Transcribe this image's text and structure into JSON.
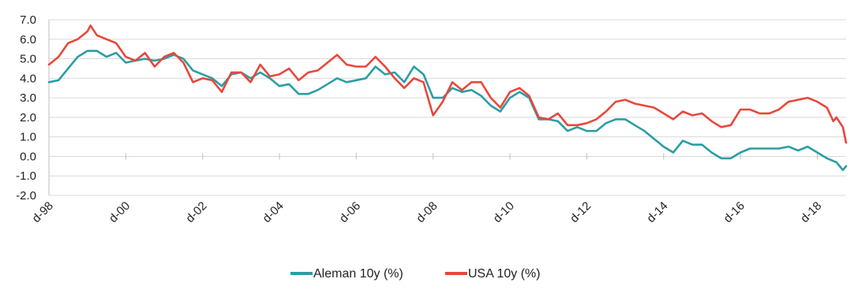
{
  "chart_data": {
    "type": "line",
    "title": "",
    "xlabel": "",
    "ylabel": "",
    "ylim": [
      -2.0,
      7.0
    ],
    "yticks": [
      "7.0",
      "6.0",
      "5.0",
      "4.0",
      "3.0",
      "2.0",
      "1.0",
      "0.0",
      "-1.0",
      "-2.0"
    ],
    "x_range": [
      "1998-12",
      "2019-09"
    ],
    "xtick_labels": [
      "d-98",
      "d-00",
      "d-02",
      "d-04",
      "d-06",
      "d-08",
      "d-10",
      "d-12",
      "d-14",
      "d-16",
      "d-18"
    ],
    "grid": "horizontal",
    "legend_position": "bottom",
    "series": [
      {
        "name": "Aleman 10y (%)",
        "color": "#2a9ea3",
        "points": [
          [
            "1998-12",
            3.8
          ],
          [
            "1999-03",
            3.9
          ],
          [
            "1999-06",
            4.5
          ],
          [
            "1999-09",
            5.1
          ],
          [
            "1999-12",
            5.4
          ],
          [
            "2000-03",
            5.4
          ],
          [
            "2000-06",
            5.1
          ],
          [
            "2000-09",
            5.3
          ],
          [
            "2000-12",
            4.8
          ],
          [
            "2001-03",
            4.9
          ],
          [
            "2001-06",
            5.0
          ],
          [
            "2001-09",
            4.9
          ],
          [
            "2001-12",
            5.0
          ],
          [
            "2002-03",
            5.2
          ],
          [
            "2002-06",
            5.0
          ],
          [
            "2002-09",
            4.4
          ],
          [
            "2002-12",
            4.2
          ],
          [
            "2003-03",
            4.0
          ],
          [
            "2003-06",
            3.6
          ],
          [
            "2003-09",
            4.2
          ],
          [
            "2003-12",
            4.3
          ],
          [
            "2004-03",
            4.0
          ],
          [
            "2004-06",
            4.3
          ],
          [
            "2004-09",
            4.0
          ],
          [
            "2004-12",
            3.6
          ],
          [
            "2005-03",
            3.7
          ],
          [
            "2005-06",
            3.2
          ],
          [
            "2005-09",
            3.2
          ],
          [
            "2005-12",
            3.4
          ],
          [
            "2006-03",
            3.7
          ],
          [
            "2006-06",
            4.0
          ],
          [
            "2006-09",
            3.8
          ],
          [
            "2006-12",
            3.9
          ],
          [
            "2007-03",
            4.0
          ],
          [
            "2007-06",
            4.6
          ],
          [
            "2007-09",
            4.2
          ],
          [
            "2007-12",
            4.3
          ],
          [
            "2008-03",
            3.8
          ],
          [
            "2008-06",
            4.6
          ],
          [
            "2008-09",
            4.2
          ],
          [
            "2008-12",
            3.0
          ],
          [
            "2009-03",
            3.0
          ],
          [
            "2009-06",
            3.5
          ],
          [
            "2009-09",
            3.3
          ],
          [
            "2009-12",
            3.4
          ],
          [
            "2010-03",
            3.1
          ],
          [
            "2010-06",
            2.6
          ],
          [
            "2010-09",
            2.3
          ],
          [
            "2010-12",
            3.0
          ],
          [
            "2011-03",
            3.3
          ],
          [
            "2011-06",
            3.0
          ],
          [
            "2011-09",
            1.9
          ],
          [
            "2011-12",
            1.9
          ],
          [
            "2012-03",
            1.8
          ],
          [
            "2012-06",
            1.3
          ],
          [
            "2012-09",
            1.5
          ],
          [
            "2012-12",
            1.3
          ],
          [
            "2013-03",
            1.3
          ],
          [
            "2013-06",
            1.7
          ],
          [
            "2013-09",
            1.9
          ],
          [
            "2013-12",
            1.9
          ],
          [
            "2014-03",
            1.6
          ],
          [
            "2014-06",
            1.3
          ],
          [
            "2014-09",
            0.9
          ],
          [
            "2014-12",
            0.5
          ],
          [
            "2015-03",
            0.2
          ],
          [
            "2015-06",
            0.8
          ],
          [
            "2015-09",
            0.6
          ],
          [
            "2015-12",
            0.6
          ],
          [
            "2016-03",
            0.2
          ],
          [
            "2016-06",
            -0.1
          ],
          [
            "2016-09",
            -0.1
          ],
          [
            "2016-12",
            0.2
          ],
          [
            "2017-03",
            0.4
          ],
          [
            "2017-06",
            0.4
          ],
          [
            "2017-09",
            0.4
          ],
          [
            "2017-12",
            0.4
          ],
          [
            "2018-03",
            0.5
          ],
          [
            "2018-06",
            0.3
          ],
          [
            "2018-09",
            0.5
          ],
          [
            "2018-12",
            0.2
          ],
          [
            "2019-03",
            -0.1
          ],
          [
            "2019-06",
            -0.3
          ],
          [
            "2019-08",
            -0.7
          ],
          [
            "2019-09",
            -0.5
          ]
        ]
      },
      {
        "name": "USA 10y (%)",
        "color": "#e8473c",
        "points": [
          [
            "1998-12",
            4.7
          ],
          [
            "1999-03",
            5.1
          ],
          [
            "1999-06",
            5.8
          ],
          [
            "1999-09",
            6.0
          ],
          [
            "1999-12",
            6.4
          ],
          [
            "2000-01",
            6.7
          ],
          [
            "2000-03",
            6.2
          ],
          [
            "2000-06",
            6.0
          ],
          [
            "2000-09",
            5.8
          ],
          [
            "2000-12",
            5.1
          ],
          [
            "2001-03",
            4.9
          ],
          [
            "2001-06",
            5.3
          ],
          [
            "2001-09",
            4.6
          ],
          [
            "2001-12",
            5.1
          ],
          [
            "2002-03",
            5.3
          ],
          [
            "2002-06",
            4.8
          ],
          [
            "2002-09",
            3.8
          ],
          [
            "2002-12",
            4.0
          ],
          [
            "2003-03",
            3.9
          ],
          [
            "2003-06",
            3.3
          ],
          [
            "2003-09",
            4.3
          ],
          [
            "2003-12",
            4.3
          ],
          [
            "2004-03",
            3.8
          ],
          [
            "2004-06",
            4.7
          ],
          [
            "2004-09",
            4.1
          ],
          [
            "2004-12",
            4.2
          ],
          [
            "2005-03",
            4.5
          ],
          [
            "2005-06",
            3.9
          ],
          [
            "2005-09",
            4.3
          ],
          [
            "2005-12",
            4.4
          ],
          [
            "2006-03",
            4.8
          ],
          [
            "2006-06",
            5.2
          ],
          [
            "2006-09",
            4.7
          ],
          [
            "2006-12",
            4.6
          ],
          [
            "2007-03",
            4.6
          ],
          [
            "2007-06",
            5.1
          ],
          [
            "2007-09",
            4.6
          ],
          [
            "2007-12",
            4.0
          ],
          [
            "2008-03",
            3.5
          ],
          [
            "2008-06",
            4.0
          ],
          [
            "2008-09",
            3.8
          ],
          [
            "2008-12",
            2.1
          ],
          [
            "2009-03",
            2.8
          ],
          [
            "2009-06",
            3.8
          ],
          [
            "2009-09",
            3.4
          ],
          [
            "2009-12",
            3.8
          ],
          [
            "2010-03",
            3.8
          ],
          [
            "2010-06",
            3.0
          ],
          [
            "2010-09",
            2.5
          ],
          [
            "2010-12",
            3.3
          ],
          [
            "2011-03",
            3.5
          ],
          [
            "2011-06",
            3.1
          ],
          [
            "2011-09",
            2.0
          ],
          [
            "2011-12",
            1.9
          ],
          [
            "2012-03",
            2.2
          ],
          [
            "2012-06",
            1.6
          ],
          [
            "2012-09",
            1.6
          ],
          [
            "2012-12",
            1.7
          ],
          [
            "2013-03",
            1.9
          ],
          [
            "2013-06",
            2.3
          ],
          [
            "2013-09",
            2.8
          ],
          [
            "2013-12",
            2.9
          ],
          [
            "2014-03",
            2.7
          ],
          [
            "2014-06",
            2.6
          ],
          [
            "2014-09",
            2.5
          ],
          [
            "2014-12",
            2.2
          ],
          [
            "2015-03",
            1.9
          ],
          [
            "2015-06",
            2.3
          ],
          [
            "2015-09",
            2.1
          ],
          [
            "2015-12",
            2.2
          ],
          [
            "2016-03",
            1.8
          ],
          [
            "2016-06",
            1.5
          ],
          [
            "2016-09",
            1.6
          ],
          [
            "2016-12",
            2.4
          ],
          [
            "2017-03",
            2.4
          ],
          [
            "2017-06",
            2.2
          ],
          [
            "2017-09",
            2.2
          ],
          [
            "2017-12",
            2.4
          ],
          [
            "2018-03",
            2.8
          ],
          [
            "2018-06",
            2.9
          ],
          [
            "2018-09",
            3.0
          ],
          [
            "2018-12",
            2.8
          ],
          [
            "2019-03",
            2.5
          ],
          [
            "2019-05",
            1.8
          ],
          [
            "2019-06",
            2.0
          ],
          [
            "2019-08",
            1.5
          ],
          [
            "2019-09",
            0.7
          ]
        ]
      }
    ]
  }
}
